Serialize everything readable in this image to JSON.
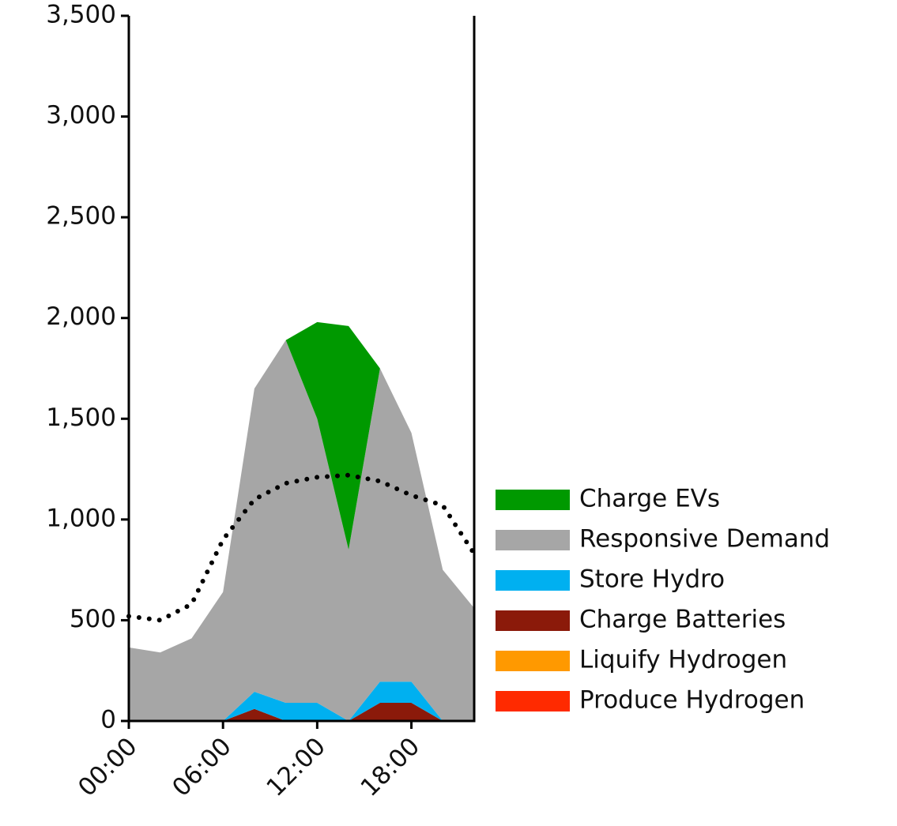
{
  "chart_data": {
    "type": "stacked_area",
    "x": [
      0,
      2,
      4,
      6,
      8,
      10,
      12,
      14,
      16,
      18,
      20,
      22
    ],
    "xlim": [
      0,
      22
    ],
    "xticks": [
      {
        "value": 0,
        "label": "00:00"
      },
      {
        "value": 6,
        "label": "06:00"
      },
      {
        "value": 12,
        "label": "12:00"
      },
      {
        "value": 18,
        "label": "18:00"
      }
    ],
    "ylim": [
      0,
      3500
    ],
    "yticks": [
      0,
      500,
      {
        "value": 1000,
        "label": "1,000"
      },
      {
        "value": 1500,
        "label": "1,500"
      },
      {
        "value": 2000,
        "label": "2,000"
      },
      {
        "value": 2500,
        "label": "2,500"
      },
      {
        "value": 3000,
        "label": "3,000"
      },
      {
        "value": 3500,
        "label": "3,500"
      }
    ],
    "series": [
      {
        "name": "Charge EVs",
        "color": "#009900",
        "values": [
          0,
          0,
          0,
          0,
          0,
          0,
          480,
          1110,
          0,
          0,
          0,
          0
        ]
      },
      {
        "name": "Responsive Demand",
        "color": "#a6a6a6",
        "values": [
          365,
          340,
          410,
          640,
          1505,
          1800,
          1410,
          850,
          1555,
          1235,
          750,
          560
        ]
      },
      {
        "name": "Store Hydro",
        "color": "#00b0f0",
        "values": [
          0,
          0,
          0,
          0,
          85,
          90,
          90,
          0,
          105,
          105,
          0,
          0
        ]
      },
      {
        "name": "Charge Batteries",
        "color": "#8b1a0a",
        "values": [
          0,
          0,
          0,
          0,
          60,
          0,
          0,
          0,
          90,
          90,
          0,
          0
        ]
      },
      {
        "name": "Liquify Hydrogen",
        "color": "#ff9900",
        "values": [
          0,
          0,
          0,
          0,
          0,
          0,
          0,
          0,
          0,
          0,
          0,
          0
        ]
      },
      {
        "name": "Produce Hydrogen",
        "color": "#ff2a00",
        "values": [
          0,
          0,
          0,
          0,
          0,
          0,
          0,
          0,
          0,
          0,
          0,
          0
        ]
      }
    ],
    "dotted_line": {
      "color": "#000000",
      "values": [
        520,
        500,
        580,
        900,
        1100,
        1180,
        1210,
        1220,
        1190,
        1120,
        1070,
        830
      ]
    }
  }
}
